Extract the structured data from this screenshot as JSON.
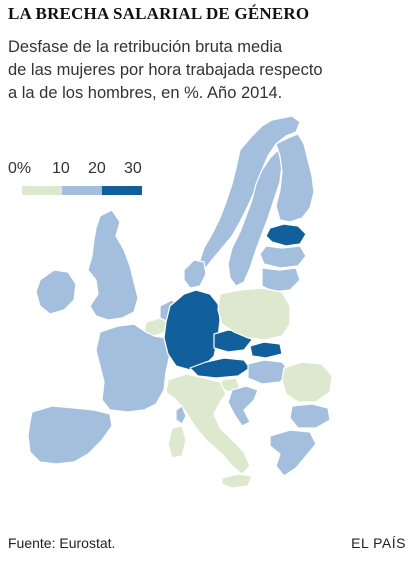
{
  "title": "LA BRECHA SALARIAL DE GÉNERO",
  "subtitle_lines": [
    "Desfase de la retribución bruta media",
    "de las mujeres por hora trabajada respecto",
    "a la de los hombres, en %. Año 2014."
  ],
  "legend": {
    "ticks": [
      "0%",
      "10",
      "20",
      "30"
    ],
    "bins": [
      {
        "range": "0-10",
        "color": "#dde9cf"
      },
      {
        "range": "10-20",
        "color": "#a3bfdd"
      },
      {
        "range": "20-30",
        "color": "#11609c"
      }
    ]
  },
  "colors": {
    "low": "#dde9cf",
    "mid": "#a3bfdd",
    "high": "#11609c",
    "border": "#ffffff"
  },
  "regions": [
    {
      "name": "ireland",
      "bin": "mid"
    },
    {
      "name": "united-kingdom",
      "bin": "mid"
    },
    {
      "name": "portugal-spain",
      "bin": "mid"
    },
    {
      "name": "france",
      "bin": "mid"
    },
    {
      "name": "belgium",
      "bin": "low"
    },
    {
      "name": "netherlands",
      "bin": "mid"
    },
    {
      "name": "denmark",
      "bin": "mid"
    },
    {
      "name": "germany",
      "bin": "high"
    },
    {
      "name": "austria",
      "bin": "high"
    },
    {
      "name": "czech-republic",
      "bin": "high"
    },
    {
      "name": "slovakia",
      "bin": "high"
    },
    {
      "name": "italy",
      "bin": "low"
    },
    {
      "name": "slovenia",
      "bin": "low"
    },
    {
      "name": "croatia",
      "bin": "mid"
    },
    {
      "name": "hungary",
      "bin": "mid"
    },
    {
      "name": "romania",
      "bin": "low"
    },
    {
      "name": "bulgaria",
      "bin": "mid"
    },
    {
      "name": "greece",
      "bin": "mid"
    },
    {
      "name": "poland",
      "bin": "low"
    },
    {
      "name": "lithuania",
      "bin": "mid"
    },
    {
      "name": "latvia",
      "bin": "mid"
    },
    {
      "name": "estonia",
      "bin": "high"
    },
    {
      "name": "norway",
      "bin": "mid"
    },
    {
      "name": "sweden",
      "bin": "mid"
    },
    {
      "name": "finland",
      "bin": "mid"
    },
    {
      "name": "sardinia",
      "bin": "low"
    },
    {
      "name": "corsica",
      "bin": "mid"
    },
    {
      "name": "sicily",
      "bin": "low"
    }
  ],
  "footer": {
    "source": "Fuente: Eurostat.",
    "brand": "EL PAÍS"
  }
}
